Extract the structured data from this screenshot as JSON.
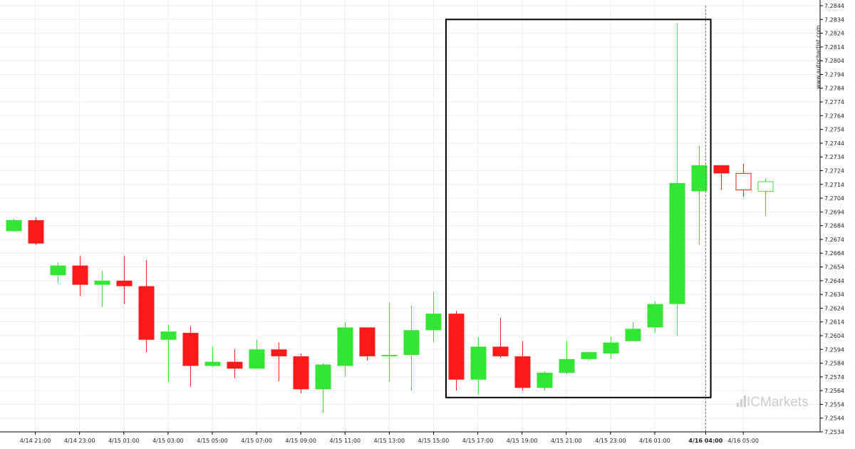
{
  "chart_data": {
    "type": "candlestick",
    "watermark": "www.autochartist.com",
    "brand": "ICMarkets",
    "y_axis": {
      "position": "right",
      "range": [
        7.2534,
        7.2844
      ],
      "ticks": [
        "7.2844",
        "7.2834",
        "7.2824",
        "7.2814",
        "7.2804",
        "7.2794",
        "7.2784",
        "7.2774",
        "7.2764",
        "7.2754",
        "7.2744",
        "7.2734",
        "7.2724",
        "7.2714",
        "7.2704",
        "7.2694",
        "7.2684",
        "7.2674",
        "7.2664",
        "7.2654",
        "7.2644",
        "7.2634",
        "7.2624",
        "7.2614",
        "7.2604",
        "7.2594",
        "7.2584",
        "7.2574",
        "7.2564",
        "7.2554",
        "7.2544",
        "7.2534"
      ]
    },
    "x_axis": {
      "tick_labels": [
        {
          "label": "4/14 21:00",
          "bar": 1
        },
        {
          "label": "4/14 23:00",
          "bar": 3
        },
        {
          "label": "4/15 01:00",
          "bar": 5
        },
        {
          "label": "4/15 03:00",
          "bar": 7
        },
        {
          "label": "4/15 05:00",
          "bar": 9
        },
        {
          "label": "4/15 07:00",
          "bar": 11
        },
        {
          "label": "4/15 09:00",
          "bar": 13
        },
        {
          "label": "4/15 11:00",
          "bar": 15
        },
        {
          "label": "4/15 13:00",
          "bar": 17
        },
        {
          "label": "4/15 15:00",
          "bar": 19
        },
        {
          "label": "4/15 17:00",
          "bar": 21
        },
        {
          "label": "4/15 19:00",
          "bar": 23
        },
        {
          "label": "4/15 21:00",
          "bar": 25
        },
        {
          "label": "4/15 23:00",
          "bar": 27
        },
        {
          "label": "4/16 01:00",
          "bar": 29
        },
        {
          "label": "4/16 04:00",
          "bar": 31.3,
          "bold": true
        },
        {
          "label": "4/16 05:00",
          "bar": 33
        }
      ]
    },
    "colors": {
      "up": "#33e633",
      "down": "#ff1a1a",
      "frame": "#000000",
      "grid": "#eeeeee"
    },
    "candles": [
      {
        "open": 7.268,
        "high": 7.2689,
        "low": 7.268,
        "close": 7.2688
      },
      {
        "open": 7.2688,
        "high": 7.269,
        "low": 7.267,
        "close": 7.2671
      },
      {
        "open": 7.2648,
        "high": 7.2657,
        "low": 7.2642,
        "close": 7.2655
      },
      {
        "open": 7.2655,
        "high": 7.2662,
        "low": 7.2633,
        "close": 7.2641
      },
      {
        "open": 7.2641,
        "high": 7.2651,
        "low": 7.2625,
        "close": 7.2644
      },
      {
        "open": 7.2644,
        "high": 7.2662,
        "low": 7.2627,
        "close": 7.264
      },
      {
        "open": 7.264,
        "high": 7.2659,
        "low": 7.2592,
        "close": 7.2601
      },
      {
        "open": 7.2601,
        "high": 7.2612,
        "low": 7.257,
        "close": 7.2607
      },
      {
        "open": 7.2606,
        "high": 7.2611,
        "low": 7.2567,
        "close": 7.2582
      },
      {
        "open": 7.2582,
        "high": 7.2596,
        "low": 7.2581,
        "close": 7.2585
      },
      {
        "open": 7.2585,
        "high": 7.2594,
        "low": 7.2573,
        "close": 7.258
      },
      {
        "open": 7.258,
        "high": 7.2601,
        "low": 7.258,
        "close": 7.2594
      },
      {
        "open": 7.2594,
        "high": 7.2599,
        "low": 7.2571,
        "close": 7.2589
      },
      {
        "open": 7.2589,
        "high": 7.2591,
        "low": 7.2562,
        "close": 7.2565
      },
      {
        "open": 7.2565,
        "high": 7.2584,
        "low": 7.2548,
        "close": 7.2583
      },
      {
        "open": 7.2582,
        "high": 7.2614,
        "low": 7.2574,
        "close": 7.261
      },
      {
        "open": 7.261,
        "high": 7.261,
        "low": 7.2586,
        "close": 7.2589
      },
      {
        "open": 7.2589,
        "high": 7.2628,
        "low": 7.257,
        "close": 7.259
      },
      {
        "open": 7.259,
        "high": 7.2626,
        "low": 7.2564,
        "close": 7.2608
      },
      {
        "open": 7.2608,
        "high": 7.2636,
        "low": 7.2599,
        "close": 7.262
      },
      {
        "open": 7.262,
        "high": 7.2622,
        "low": 7.2564,
        "close": 7.2572
      },
      {
        "open": 7.2572,
        "high": 7.2603,
        "low": 7.2561,
        "close": 7.2596
      },
      {
        "open": 7.2596,
        "high": 7.2617,
        "low": 7.2588,
        "close": 7.2589
      },
      {
        "open": 7.2589,
        "high": 7.26,
        "low": 7.2564,
        "close": 7.2566
      },
      {
        "open": 7.2566,
        "high": 7.2578,
        "low": 7.2564,
        "close": 7.2577
      },
      {
        "open": 7.2577,
        "high": 7.26,
        "low": 7.2576,
        "close": 7.2587
      },
      {
        "open": 7.2587,
        "high": 7.2592,
        "low": 7.2586,
        "close": 7.2592
      },
      {
        "open": 7.2591,
        "high": 7.2603,
        "low": 7.2587,
        "close": 7.2599
      },
      {
        "open": 7.26,
        "high": 7.2614,
        "low": 7.26,
        "close": 7.2609
      },
      {
        "open": 7.261,
        "high": 7.2629,
        "low": 7.2606,
        "close": 7.2627
      },
      {
        "open": 7.2627,
        "high": 7.2831,
        "low": 7.2604,
        "close": 7.2715
      },
      {
        "open": 7.2709,
        "high": 7.2742,
        "low": 7.267,
        "close": 7.2728
      },
      {
        "open": 7.2728,
        "high": 7.2728,
        "low": 7.271,
        "close": 7.2722
      },
      {
        "open": 7.2722,
        "high": 7.2729,
        "low": 7.2705,
        "close": 7.271,
        "hollow": true
      },
      {
        "open": 7.2709,
        "high": 7.2718,
        "low": 7.2691,
        "close": 7.2716,
        "hollow": true
      }
    ],
    "pattern_box": {
      "from_bar": 20,
      "to_bar": 32,
      "top": 7.2834,
      "bottom": 7.2559
    },
    "forecast_line_bar": 31.3
  }
}
